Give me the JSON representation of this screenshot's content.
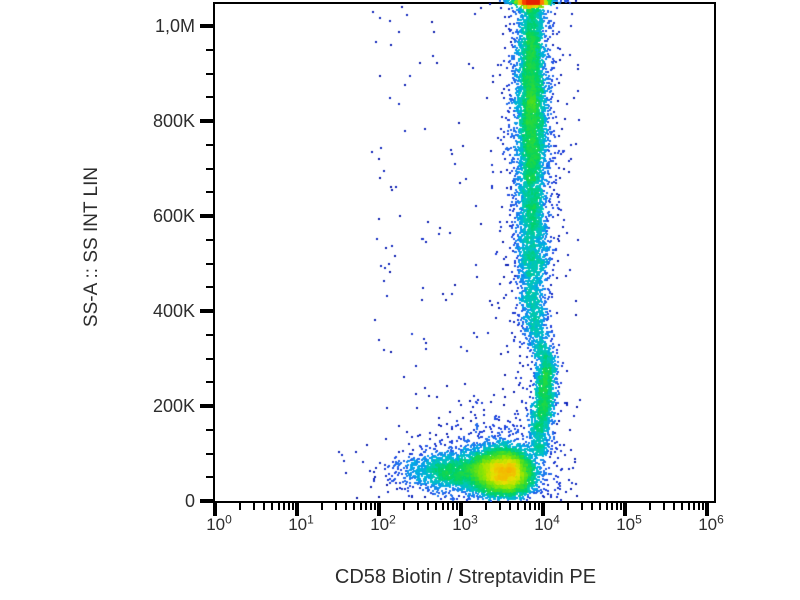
{
  "chart_data": {
    "type": "scatter",
    "subtype": "flow-cytometry-pseudocolor-density-plot",
    "title": "",
    "xlabel": "CD58 Biotin / Streptavidin PE",
    "ylabel": "SS-A :: SS INT LIN",
    "x_scale": "log10",
    "x_range_decades": [
      0,
      6.11
    ],
    "x_major_ticks": [
      {
        "base": "10",
        "exp": "0",
        "decade": 0
      },
      {
        "base": "10",
        "exp": "1",
        "decade": 1
      },
      {
        "base": "10",
        "exp": "2",
        "decade": 2
      },
      {
        "base": "10",
        "exp": "3",
        "decade": 3
      },
      {
        "base": "10",
        "exp": "4",
        "decade": 4
      },
      {
        "base": "10",
        "exp": "5",
        "decade": 5
      },
      {
        "base": "10",
        "exp": "6",
        "decade": 6
      }
    ],
    "x_minor_tick_mantissas": [
      2,
      3,
      4,
      5,
      6,
      7,
      8,
      9
    ],
    "y_range": [
      0,
      1050000
    ],
    "y_major_ticks": [
      {
        "value": 0,
        "label": "0"
      },
      {
        "value": 200000,
        "label": "200K"
      },
      {
        "value": 400000,
        "label": "400K"
      },
      {
        "value": 600000,
        "label": "600K"
      },
      {
        "value": 800000,
        "label": "800K"
      },
      {
        "value": 1000000,
        "label": "1,0M"
      }
    ],
    "y_minor_tick_step": 50000,
    "grid": false,
    "legend": null,
    "populations": [
      {
        "name": "lymphocytes-core",
        "n": 6000,
        "x": {
          "dist": "gauss",
          "mean": 3.53,
          "sd": 0.17
        },
        "y": {
          "dist": "gauss",
          "mean": 60000,
          "sd": 24000
        },
        "y_clip": [
          4000,
          160000
        ]
      },
      {
        "name": "lymphocytes-left-tail",
        "n": 2100,
        "x": {
          "dist": "gauss",
          "mean": 3.02,
          "sd": 0.36
        },
        "x_clip": [
          1.8,
          3.7
        ],
        "y": {
          "dist": "gauss",
          "mean": 62000,
          "sd": 20000
        },
        "y_clip": [
          6000,
          130000
        ]
      },
      {
        "name": "lymphocytes-halo",
        "n": 850,
        "x": {
          "dist": "gauss",
          "mean": 3.4,
          "sd": 0.45
        },
        "x_clip": [
          1.75,
          4.45
        ],
        "y": {
          "dist": "gauss",
          "mean": 70000,
          "sd": 60000
        },
        "y_clip": [
          1000,
          260000
        ]
      },
      {
        "name": "granulocytes-core",
        "n": 5200,
        "x": {
          "dist": "gauss",
          "mean": 3.86,
          "sd": 0.082
        },
        "y": {
          "dist": "gauss",
          "mean": 830000,
          "sd": 180000
        },
        "pileup": true
      },
      {
        "name": "granulocytes-halo",
        "n": 1500,
        "x": {
          "dist": "gauss",
          "mean": 3.86,
          "sd": 0.17
        },
        "y": {
          "dist": "gauss",
          "mean": 820000,
          "sd": 195000
        },
        "pileup": true
      },
      {
        "name": "granulocytes-clipped-top",
        "n": 1400,
        "x": {
          "dist": "gauss",
          "mean": 3.865,
          "sd": 0.08
        },
        "y": {
          "dist": "uniform",
          "min": 1052000,
          "max": 1090000
        },
        "pileup": true
      },
      {
        "name": "granulocytes-lower-tail",
        "n": 850,
        "x": {
          "dist": "gauss",
          "mean": 3.88,
          "sd": 0.1
        },
        "y": {
          "dist": "gauss",
          "mean": 480000,
          "sd": 85000
        },
        "y_clip": [
          320000,
          660000
        ]
      },
      {
        "name": "monocytes",
        "n": 1100,
        "x": {
          "dist": "gauss",
          "mean": 4.03,
          "sd": 0.062
        },
        "y": {
          "dist": "gauss",
          "mean": 245000,
          "sd": 45000
        },
        "slope_dex_per_y": 3e-07,
        "slope_y_ref": 245000
      },
      {
        "name": "monocyte-granulocyte-bridge",
        "n": 330,
        "x": {
          "dist": "gauss",
          "mean": 3.88,
          "sd": 0.055
        },
        "y": {
          "dist": "uniform",
          "min": 300000,
          "max": 430000
        },
        "slope_dex_per_y": -6.9e-07,
        "slope_y_ref": 430000
      },
      {
        "name": "lymphocyte-monocyte-bridge",
        "n": 480,
        "x": {
          "dist": "gauss",
          "mean": 3.96,
          "sd": 0.07
        },
        "y": {
          "dist": "uniform",
          "min": 95000,
          "max": 210000
        }
      },
      {
        "name": "scatter-noise",
        "n": 215,
        "x": {
          "dist": "uniform",
          "min": 1.9,
          "max": 4.45
        },
        "y": {
          "dist": "uniform",
          "min": 0,
          "max": 1040000
        }
      },
      {
        "name": "scatter-noise-far-left",
        "n": 12,
        "x": {
          "dist": "uniform",
          "min": 1.5,
          "max": 2.6
        },
        "y": {
          "dist": "uniform",
          "min": 2000,
          "max": 120000
        }
      }
    ],
    "style": {
      "seed": 1337,
      "dot_size": 2,
      "bin_size": 4,
      "axis_color": "#000000",
      "text_color": "#2d2d2d",
      "background": "#ffffff",
      "colormap": [
        [
          0.0,
          "#000082"
        ],
        [
          0.1,
          "#0A1EB4"
        ],
        [
          0.22,
          "#2346E0"
        ],
        [
          0.33,
          "#1E78F0"
        ],
        [
          0.43,
          "#00AAE6"
        ],
        [
          0.52,
          "#00C8B4"
        ],
        [
          0.6,
          "#00D264"
        ],
        [
          0.68,
          "#3CDC28"
        ],
        [
          0.76,
          "#96E600"
        ],
        [
          0.83,
          "#E6E100"
        ],
        [
          0.9,
          "#FF9B00"
        ],
        [
          0.96,
          "#FF4600"
        ],
        [
          1.0,
          "#E61E00"
        ]
      ]
    }
  }
}
